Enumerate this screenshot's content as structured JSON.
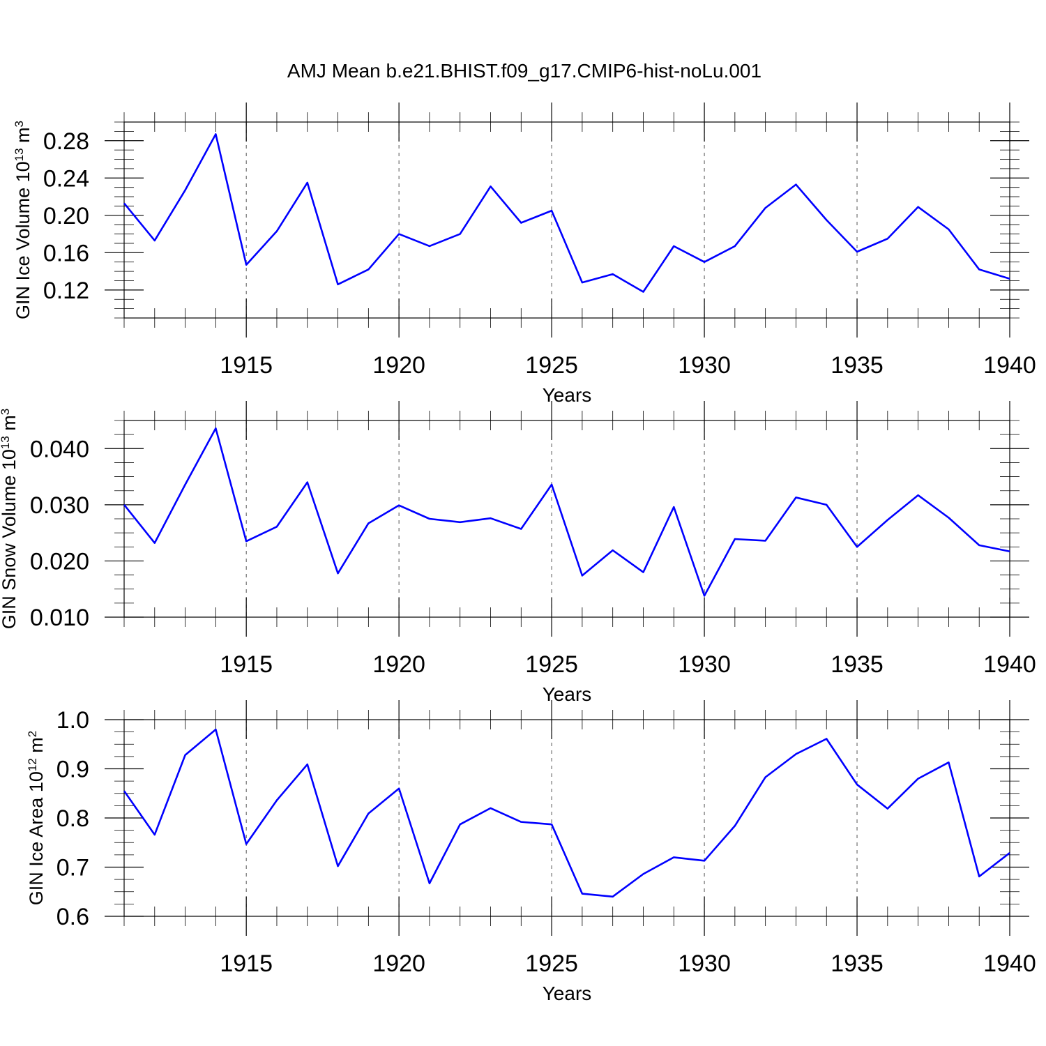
{
  "title": "AMJ Mean b.e21.BHIST.f09_g17.CMIP6-hist-noLu.001",
  "colors": {
    "series": "#0000ff"
  },
  "chart_data": [
    {
      "type": "line",
      "xlabel": "Years",
      "ylabel": "GIN Ice Volume 10",
      "ylabel_exp": "13",
      "ylabel_unit": " m",
      "ylabel_unit_exp": "3",
      "xlim": [
        1911,
        1940
      ],
      "ylim": [
        0.09,
        0.3
      ],
      "xticks": [
        1915,
        1920,
        1925,
        1930,
        1935,
        1940
      ],
      "xtick_labels": [
        "1915",
        "1920",
        "1925",
        "1930",
        "1935",
        "1940"
      ],
      "yticks": [
        0.12,
        0.16,
        0.2,
        0.24,
        0.28
      ],
      "ytick_labels": [
        "0.12",
        "0.16",
        "0.20",
        "0.24",
        "0.28"
      ],
      "grid": "vertical dashed at labeled years",
      "x": [
        1911,
        1912,
        1913,
        1914,
        1915,
        1916,
        1917,
        1918,
        1919,
        1920,
        1921,
        1922,
        1923,
        1924,
        1925,
        1926,
        1927,
        1928,
        1929,
        1930,
        1931,
        1932,
        1933,
        1934,
        1935,
        1936,
        1937,
        1938,
        1939,
        1940
      ],
      "series": [
        {
          "values": [
            0.213,
            0.173,
            0.227,
            0.287,
            0.147,
            0.183,
            0.235,
            0.126,
            0.142,
            0.18,
            0.167,
            0.18,
            0.231,
            0.192,
            0.205,
            0.128,
            0.137,
            0.118,
            0.167,
            0.15,
            0.167,
            0.208,
            0.233,
            0.195,
            0.161,
            0.175,
            0.209,
            0.185,
            0.142,
            0.132
          ]
        }
      ]
    },
    {
      "type": "line",
      "xlabel": "Years",
      "ylabel": "GIN Snow Volume 10",
      "ylabel_exp": "13",
      "ylabel_unit": " m",
      "ylabel_unit_exp": "3",
      "xlim": [
        1911,
        1940
      ],
      "ylim": [
        0.01,
        0.045
      ],
      "xticks": [
        1915,
        1920,
        1925,
        1930,
        1935,
        1940
      ],
      "xtick_labels": [
        "1915",
        "1920",
        "1925",
        "1930",
        "1935",
        "1940"
      ],
      "yticks": [
        0.01,
        0.02,
        0.03,
        0.04
      ],
      "ytick_labels": [
        "0.010",
        "0.020",
        "0.030",
        "0.040"
      ],
      "grid": "vertical dashed at labeled years",
      "x": [
        1911,
        1912,
        1913,
        1914,
        1915,
        1916,
        1917,
        1918,
        1919,
        1920,
        1921,
        1922,
        1923,
        1924,
        1925,
        1926,
        1927,
        1928,
        1929,
        1930,
        1931,
        1932,
        1933,
        1934,
        1935,
        1936,
        1937,
        1938,
        1939,
        1940
      ],
      "series": [
        {
          "values": [
            0.03,
            0.0232,
            0.0336,
            0.0436,
            0.0235,
            0.0261,
            0.034,
            0.0178,
            0.0267,
            0.0299,
            0.0275,
            0.0269,
            0.0276,
            0.0257,
            0.0336,
            0.0174,
            0.0219,
            0.018,
            0.0296,
            0.0138,
            0.0239,
            0.0236,
            0.0313,
            0.03,
            0.0225,
            0.0273,
            0.0317,
            0.0277,
            0.0228,
            0.0217
          ]
        }
      ]
    },
    {
      "type": "line",
      "xlabel": "Years",
      "ylabel": "GIN Ice Area 10",
      "ylabel_exp": "12",
      "ylabel_unit": " m",
      "ylabel_unit_exp": "2",
      "xlim": [
        1911,
        1940
      ],
      "ylim": [
        0.6,
        1.0
      ],
      "xticks": [
        1915,
        1920,
        1925,
        1930,
        1935,
        1940
      ],
      "xtick_labels": [
        "1915",
        "1920",
        "1925",
        "1930",
        "1935",
        "1940"
      ],
      "yticks": [
        0.6,
        0.7,
        0.8,
        0.9,
        1.0
      ],
      "ytick_labels": [
        "0.6",
        "0.7",
        "0.8",
        "0.9",
        "1.0"
      ],
      "grid": "vertical dashed at labeled years",
      "x": [
        1911,
        1912,
        1913,
        1914,
        1915,
        1916,
        1917,
        1918,
        1919,
        1920,
        1921,
        1922,
        1923,
        1924,
        1925,
        1926,
        1927,
        1928,
        1929,
        1930,
        1931,
        1932,
        1933,
        1934,
        1935,
        1936,
        1937,
        1938,
        1939,
        1940
      ],
      "series": [
        {
          "values": [
            0.855,
            0.766,
            0.928,
            0.98,
            0.747,
            0.836,
            0.909,
            0.702,
            0.809,
            0.86,
            0.667,
            0.787,
            0.82,
            0.792,
            0.787,
            0.646,
            0.64,
            0.686,
            0.72,
            0.713,
            0.784,
            0.883,
            0.93,
            0.961,
            0.868,
            0.819,
            0.88,
            0.913,
            0.681,
            0.729
          ]
        }
      ]
    }
  ]
}
